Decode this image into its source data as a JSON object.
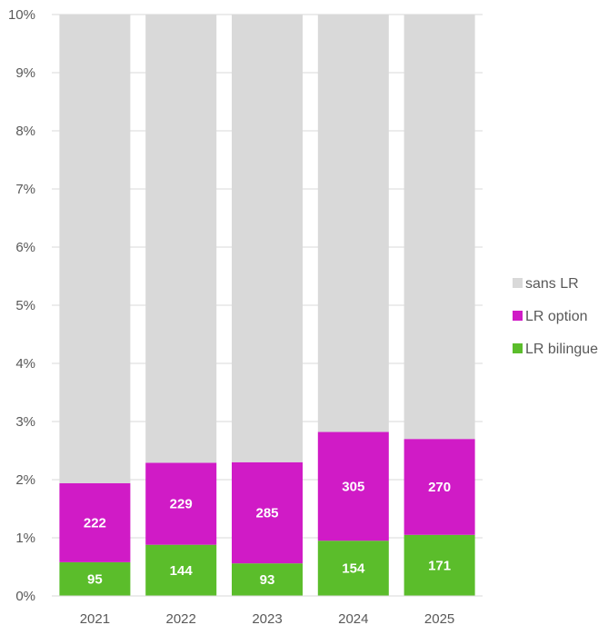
{
  "chart_data": {
    "type": "bar",
    "stacked": true,
    "categories": [
      "2021",
      "2022",
      "2023",
      "2024",
      "2025"
    ],
    "y_unit": "%",
    "ylim": [
      0,
      10
    ],
    "yticks": [
      0,
      1,
      2,
      3,
      4,
      5,
      6,
      7,
      8,
      9,
      10
    ],
    "ytick_labels": [
      "0%",
      "1%",
      "2%",
      "3%",
      "4%",
      "5%",
      "6%",
      "7%",
      "8%",
      "9%",
      "10%"
    ],
    "grid": true,
    "legend_position": "right",
    "series": [
      {
        "name": "LR bilingue",
        "color": "#5bbd2b",
        "values": [
          0.58,
          0.88,
          0.56,
          0.95,
          1.05
        ],
        "labels": [
          "95",
          "144",
          "93",
          "154",
          "171"
        ]
      },
      {
        "name": "LR option",
        "color": "#d01bc6",
        "values": [
          1.36,
          1.41,
          1.74,
          1.87,
          1.65
        ],
        "labels": [
          "222",
          "229",
          "285",
          "305",
          "270"
        ]
      },
      {
        "name": "sans LR",
        "color": "#d9d9d9",
        "values": [
          8.06,
          7.71,
          7.7,
          7.18,
          7.3
        ],
        "labels": []
      }
    ],
    "legend_order": [
      "sans LR",
      "LR option",
      "LR bilingue"
    ]
  }
}
